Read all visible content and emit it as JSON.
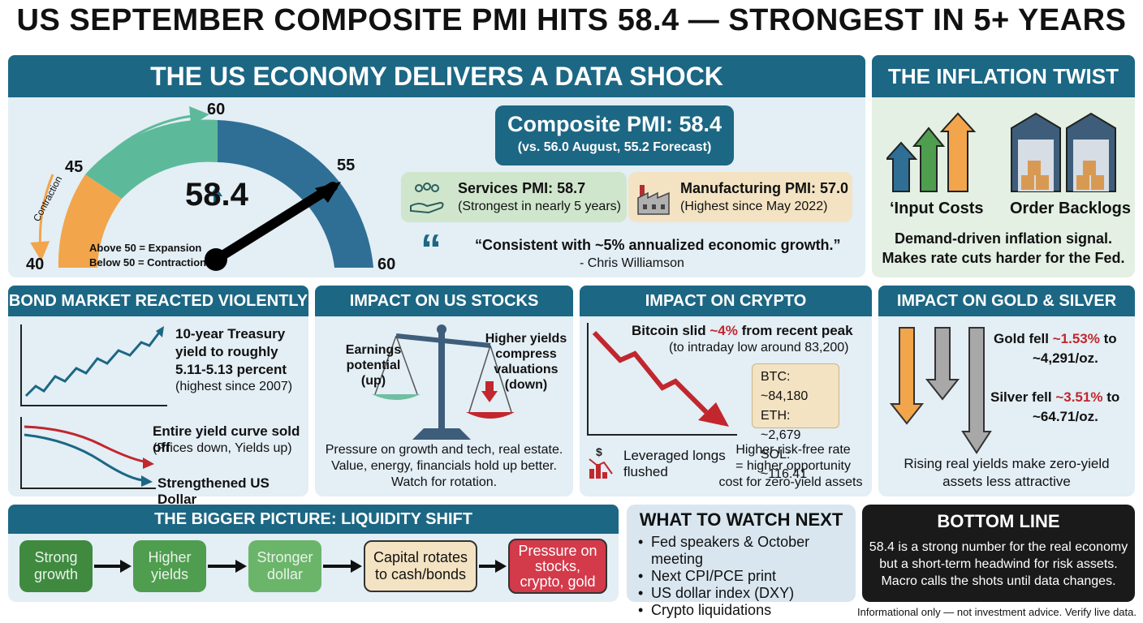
{
  "title": "US SEPTEMBER COMPOSITE PMI HITS 58.4 — STRONGEST IN 5+ YEARS",
  "economy": {
    "header": "THE US ECONOMY DELIVERS A DATA SHOCK",
    "gauge": {
      "value": "58.4",
      "value_num": 58.4,
      "ticks": [
        "40",
        "45",
        "60",
        "55",
        "60"
      ],
      "contraction_label": "Contraction",
      "legend_above": "Above 50 = Expansion",
      "legend_below": "Below 50 = Contraction"
    },
    "composite": {
      "title": "Composite PMI: 58.4",
      "sub": "(vs. 56.0 August, 55.2 Forecast)"
    },
    "services": {
      "title": "Services PMI: 58.7",
      "sub": "(Strongest in nearly 5 years)"
    },
    "manufacturing": {
      "title": "Manufacturing PMI: 57.0",
      "sub": "(Highest since May 2022)"
    },
    "quote_mark": "“",
    "quote": "“Consistent with ~5% annualized economic growth.”",
    "quote_author": "- Chris Williamson"
  },
  "inflation": {
    "header": "THE INFLATION TWIST",
    "label_costs": "‘Input Costs",
    "label_backlogs": "Order Backlogs",
    "text_line1": "Demand-driven inflation signal.",
    "text_line2": "Makes rate cuts harder for the Fed."
  },
  "bonds": {
    "header": "BOND MARKET REACTED VIOLENTLY",
    "yield_l1": "10-year Treasury",
    "yield_l2": "yield to roughly",
    "yield_l3": "5.11-5.13 percent",
    "yield_l4": "(highest since 2007)",
    "curve_l1": "Entire yield curve sold off",
    "curve_l2": "(Prices down, Yields up)",
    "dollar": "Strengthened US Dollar"
  },
  "stocks": {
    "header": "IMPACT ON US STOCKS",
    "left_label": "Earnings\npotential\n(up)",
    "right_label": "Higher yields\ncompress\nvaluations\n(down)",
    "text_l1": "Pressure on growth and tech, real estate.",
    "text_l2": "Value, energy, financials hold up better.",
    "text_l3": "Watch for rotation."
  },
  "crypto": {
    "header": "IMPACT ON CRYPTO",
    "btc_pre": "Bitcoin slid ",
    "btc_pct": "~4%",
    "btc_post": " from recent peak",
    "btc_sub": "(to intraday low around 83,200)",
    "prices": [
      "BTC: ~84,180",
      "ETH: ~2,679",
      "SOL: ~116.41"
    ],
    "leveraged": "Leveraged longs\nflushed",
    "riskfree_l1": "Higher risk-free rate",
    "riskfree_l2": "= higher opportunity",
    "riskfree_l3": "cost for zero-yield assets"
  },
  "metals": {
    "header": "IMPACT ON GOLD & SILVER",
    "gold_pre": "Gold fell ",
    "gold_pct": "~1.53%",
    "gold_post": " to",
    "gold_price": "~4,291/oz.",
    "silver_pre": "Silver fell ",
    "silver_pct": "~3.51%",
    "silver_post": " to",
    "silver_price": "~64.71/oz.",
    "text_l1": "Rising real yields make zero-yield",
    "text_l2": "assets less attractive"
  },
  "bigger": {
    "header": "THE BIGGER PICTURE: LIQUIDITY SHIFT",
    "steps": [
      "Strong\ngrowth",
      "Higher\nyields",
      "Stronger\ndollar",
      "Capital rotates\nto cash/bonds",
      "Pressure on\nstocks,\ncrypto, gold"
    ]
  },
  "watch": {
    "header": "WHAT TO WATCH NEXT",
    "items": [
      "Fed speakers & October meeting",
      "Next CPI/PCE print",
      "US dollar index (DXY)",
      "Crypto liquidations"
    ]
  },
  "bottom": {
    "header": "BOTTOM LINE",
    "l1": "58.4 is a strong number for the real economy",
    "l2": "but a short-term headwind for risk assets.",
    "l3": "Macro calls the shots until data changes."
  },
  "disclaimer": "Informational only — not investment advice. Verify live data.",
  "colors": {
    "teal": "#1c6784",
    "red": "#c1272d",
    "green": "#3f8a3f",
    "orange": "#f2a54a",
    "mint": "#5cba9a",
    "dark": "#1a1a1a"
  }
}
